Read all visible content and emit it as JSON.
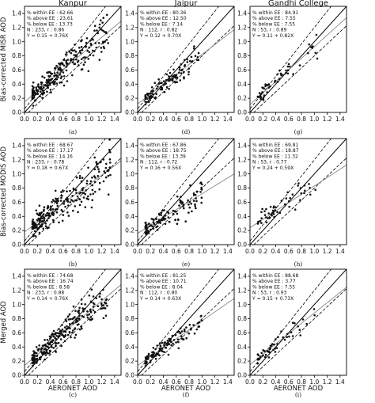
{
  "chart_data": {
    "type": "scatter",
    "columns": [
      "Kanpur",
      "Jaipur",
      "Gandhi College"
    ],
    "row_ylabels": [
      "Bias-corrected MISR AOD",
      "Bias-corrected MODIS AOD",
      "Merged AOD"
    ],
    "xlabel": "AERONET AOD",
    "ticks": [
      "0.0",
      "0.2",
      "0.4",
      "0.6",
      "0.8",
      "1.0",
      "1.2",
      "1.4"
    ],
    "xlim": [
      0,
      1.5
    ],
    "ylim": [
      0,
      1.5
    ],
    "panels": [
      {
        "caption": "(a)",
        "site": "Kanpur",
        "within": "62.66",
        "above": "23.61",
        "below": "13.73",
        "N": "233",
        "r": "0.86",
        "fit": "Y = 0.15 + 0.76X",
        "slope": 0.76,
        "intercept": 0.15,
        "n_pts": 233,
        "spread": 0.1,
        "xmax": 1.3,
        "seed": 11,
        "stats": [
          "% within EE : 62.66",
          "% above EE : 23.61",
          "% below EE : 13.73",
          "N : 233, r : 0.86",
          "Y = 0.15 + 0.76X"
        ]
      },
      {
        "caption": "(d)",
        "site": "Jaipur",
        "within": "80.36",
        "above": "12.50",
        "below": "7.14",
        "N": "112",
        "r": "0.82",
        "fit": "Y = 0.12 + 0.70X",
        "slope": 0.7,
        "intercept": 0.12,
        "n_pts": 112,
        "spread": 0.07,
        "xmax": 0.95,
        "seed": 21,
        "stats": [
          "% within EE : 80.36",
          "% above EE : 12.50",
          "% below EE : 7.14",
          "N : 112, r : 0.82",
          "Y = 0.12 + 0.70X"
        ]
      },
      {
        "caption": "(g)",
        "site": "Gandhi College",
        "within": "84.91",
        "above": "7.55",
        "below": "7.55",
        "N": "53",
        "r": "0.89",
        "fit": "Y = 0.11 + 0.82X",
        "slope": 0.82,
        "intercept": 0.11,
        "n_pts": 53,
        "spread": 0.07,
        "xmax": 1.05,
        "seed": 31,
        "stats": [
          "% within EE : 84.91",
          "% above EE : 7.55",
          "% below EE : 7.55",
          "N : 53, r : 0.89",
          "Y = 0.11 + 0.82X"
        ]
      },
      {
        "caption": "(b)",
        "site": "Kanpur",
        "within": "68.67",
        "above": "17.17",
        "below": "14.16",
        "N": "233",
        "r": "0.78",
        "fit": "Y = 0.18 + 0.67X",
        "slope": 0.67,
        "intercept": 0.18,
        "n_pts": 233,
        "spread": 0.12,
        "xmax": 1.35,
        "seed": 41,
        "stats": [
          "% within EE : 68.67",
          "% above EE : 17.17",
          "% below EE : 14.16",
          "N : 233, r : 0.78",
          "Y = 0.18 + 0.67X"
        ]
      },
      {
        "caption": "(e)",
        "site": "Jaipur",
        "within": "67.86",
        "above": "18.75",
        "below": "13.39",
        "N": "112",
        "r": "0.72",
        "fit": "Y = 0.16 + 0.56X",
        "slope": 0.56,
        "intercept": 0.16,
        "n_pts": 112,
        "spread": 0.09,
        "xmax": 1.0,
        "seed": 51,
        "stats": [
          "% within EE : 67.86",
          "% above EE : 18.75",
          "% below EE : 13.39",
          "N : 112, r : 0.72",
          "Y = 0.16 + 0.56X"
        ]
      },
      {
        "caption": "(h)",
        "site": "Gandhi College",
        "within": "69.81",
        "above": "18.87",
        "below": "11.32",
        "N": "53",
        "r": "0.77",
        "fit": "Y = 0.24 + 0.59X",
        "slope": 0.59,
        "intercept": 0.24,
        "n_pts": 53,
        "spread": 0.09,
        "xmax": 1.05,
        "seed": 61,
        "stats": [
          "% within EE : 69.81",
          "% above EE : 18.87",
          "% below EE : 11.32",
          "N : 53, r : 0.77",
          "Y = 0.24 + 0.59X"
        ]
      },
      {
        "caption": "(c)",
        "site": "Kanpur",
        "within": "74.68",
        "above": "16.74",
        "below": "8.58",
        "N": "233",
        "r": "0.88",
        "fit": "Y = 0.14 + 0.76X",
        "slope": 0.76,
        "intercept": 0.14,
        "n_pts": 233,
        "spread": 0.09,
        "xmax": 1.3,
        "seed": 71,
        "stats": [
          "% within EE : 74.68",
          "% above EE : 16.74",
          "% below EE : 8.58",
          "N : 233, r : 0.88",
          "Y = 0.14 + 0.76X"
        ]
      },
      {
        "caption": "(f)",
        "site": "Jaipur",
        "within": "81.25",
        "above": "10.71",
        "below": "8.04",
        "N": "112",
        "r": "0.80",
        "fit": "Y = 0.14 + 0.63X",
        "slope": 0.63,
        "intercept": 0.14,
        "n_pts": 112,
        "spread": 0.07,
        "xmax": 1.0,
        "seed": 81,
        "stats": [
          "% within EE : 81.25",
          "% above EE : 10.71",
          "% below EE : 8.04",
          "N : 112, r : 0.80",
          "Y = 0.14 + 0.63X"
        ]
      },
      {
        "caption": "(i)",
        "site": "Gandhi College",
        "within": "88.68",
        "above": "3.77",
        "below": "7.55",
        "N": "53",
        "r": "0.93",
        "fit": "Y = 0.15 + 0.73X",
        "slope": 0.73,
        "intercept": 0.15,
        "n_pts": 53,
        "spread": 0.06,
        "xmax": 1.05,
        "seed": 91,
        "stats": [
          "% within EE : 88.68",
          "% above EE : 3.77",
          "% below EE : 7.55",
          "N : 53, r : 0.93",
          "Y = 0.15 + 0.73X"
        ]
      }
    ]
  }
}
